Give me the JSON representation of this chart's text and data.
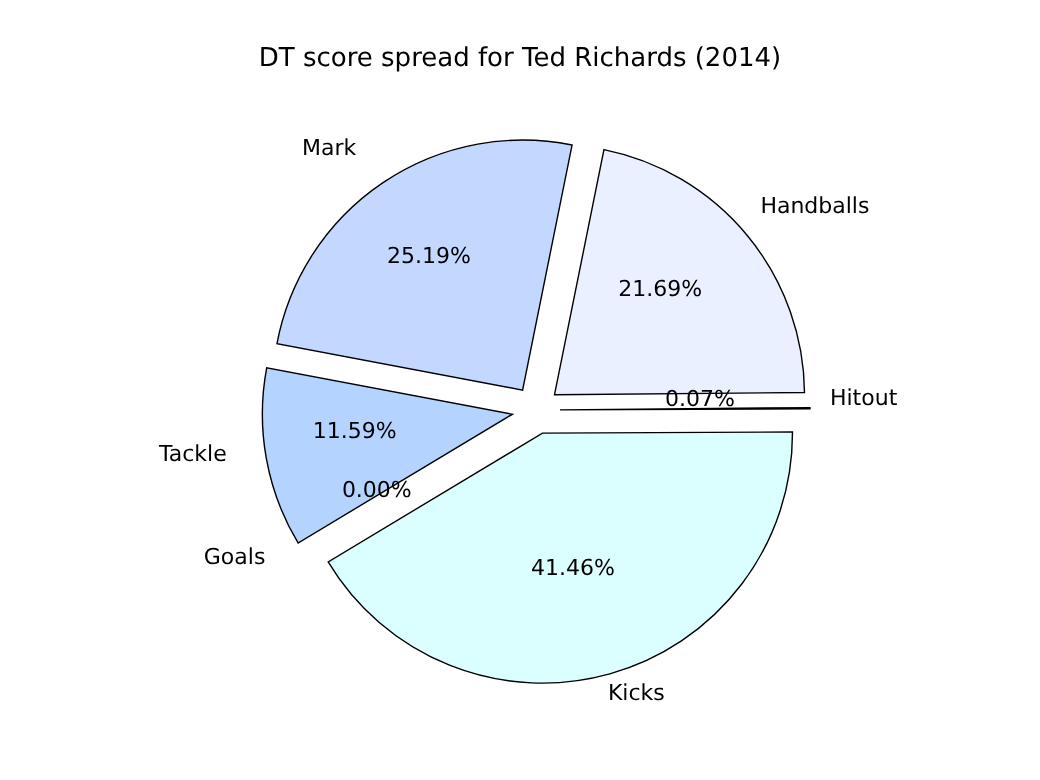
{
  "chart_data": {
    "type": "pie",
    "title": "DT score spread for Ted Richards (2014)",
    "categories": [
      "Kicks",
      "Hitout",
      "Handballs",
      "Mark",
      "Tackle",
      "Goals"
    ],
    "values": [
      41.46,
      0.07,
      21.69,
      25.19,
      11.59,
      0.0
    ],
    "value_labels": [
      "41.46%",
      "0.07%",
      "21.69%",
      "25.19%",
      "11.59%",
      "0.00%"
    ],
    "colors": [
      "#dbffff",
      "#d4e4ff",
      "#eaf0ff",
      "#c4d8ff",
      "#b4d4ff",
      "#a4c4ff"
    ],
    "legend": false
  }
}
